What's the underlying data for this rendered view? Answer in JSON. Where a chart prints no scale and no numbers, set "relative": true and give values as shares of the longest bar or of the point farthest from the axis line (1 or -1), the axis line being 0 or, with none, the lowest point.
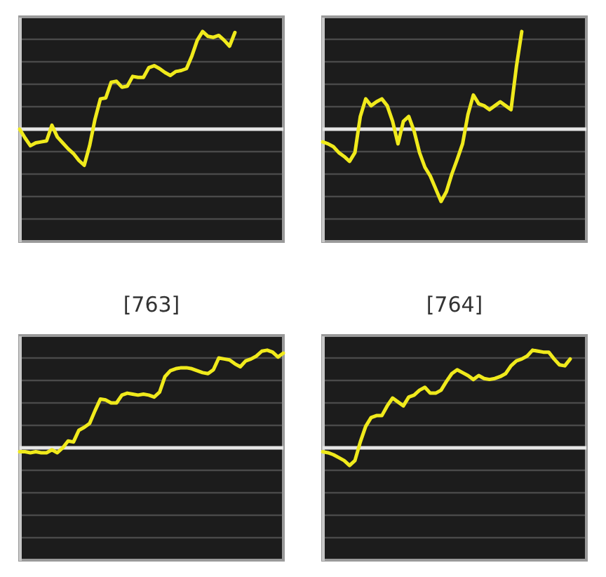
{
  "chart_data": [
    {
      "type": "line",
      "relative": true,
      "categories": [
        null,
        null,
        null,
        null,
        null,
        null,
        null,
        null,
        null,
        null,
        null,
        null,
        null,
        null,
        null,
        null,
        null,
        null,
        null,
        null,
        null,
        null,
        null,
        null,
        null,
        null,
        null,
        null,
        null,
        null,
        null,
        null,
        null,
        null,
        null,
        null,
        null,
        null,
        null,
        null,
        null,
        null,
        null,
        null,
        null,
        null,
        null,
        null,
        null,
        null
      ],
      "ref_lines": [
        {
          "axis": "y",
          "value": 0,
          "color": "#e6e6e6"
        }
      ],
      "series": [
        {
          "color": "#f0ea1c",
          "values": [
            0,
            -0.09,
            -0.17,
            -0.14,
            -0.13,
            -0.12,
            0.04,
            -0.08,
            -0.14,
            -0.2,
            -0.25,
            -0.32,
            -0.37,
            -0.17,
            0.1,
            0.31,
            0.32,
            0.48,
            0.49,
            0.43,
            0.44,
            0.54,
            0.53,
            0.53,
            0.63,
            0.65,
            0.62,
            0.58,
            0.55,
            0.59,
            0.6,
            0.62,
            0.75,
            0.91,
            1,
            0.95,
            0.94,
            0.96,
            0.91,
            0.85,
            0.99,
            null,
            null,
            null,
            null,
            null,
            null,
            null,
            null,
            null
          ]
        }
      ]
    },
    {
      "type": "line",
      "relative": true,
      "categories": [
        null,
        null,
        null,
        null,
        null,
        null,
        null,
        null,
        null,
        null,
        null,
        null,
        null,
        null,
        null,
        null,
        null,
        null,
        null,
        null,
        null,
        null,
        null,
        null,
        null,
        null,
        null,
        null,
        null,
        null,
        null,
        null,
        null,
        null,
        null,
        null,
        null,
        null,
        null,
        null,
        null,
        null,
        null,
        null,
        null,
        null,
        null,
        null,
        null,
        null
      ],
      "ref_lines": [
        {
          "axis": "y",
          "value": 0,
          "color": "#e6e6e6"
        }
      ],
      "series": [
        {
          "color": "#f0ea1c",
          "values": [
            -0.13,
            -0.15,
            -0.18,
            -0.24,
            -0.28,
            -0.33,
            -0.24,
            0.13,
            0.31,
            0.24,
            0.28,
            0.31,
            0.24,
            0.08,
            -0.15,
            0.08,
            0.13,
            -0.02,
            -0.24,
            -0.39,
            -0.48,
            -0.61,
            -0.74,
            -0.64,
            -0.46,
            -0.31,
            -0.15,
            0.15,
            0.35,
            0.26,
            0.24,
            0.2,
            0.24,
            0.28,
            0.24,
            0.2,
            0.64,
            1,
            null,
            null,
            null,
            null,
            null,
            null,
            null,
            null,
            null,
            null,
            null,
            null
          ]
        }
      ]
    },
    {
      "type": "line",
      "relative": true,
      "title": "[763]",
      "categories": [
        null,
        null,
        null,
        null,
        null,
        null,
        null,
        null,
        null,
        null,
        null,
        null,
        null,
        null,
        null,
        null,
        null,
        null,
        null,
        null,
        null,
        null,
        null,
        null,
        null,
        null,
        null,
        null,
        null,
        null,
        null,
        null,
        null,
        null,
        null,
        null,
        null,
        null,
        null,
        null,
        null,
        null,
        null,
        null,
        null,
        null,
        null,
        null,
        null,
        null
      ],
      "ref_lines": [
        {
          "axis": "y",
          "value": 0,
          "color": "#e6e6e6"
        }
      ],
      "series": [
        {
          "color": "#f0ea1c",
          "values": [
            -0.04,
            -0.04,
            -0.05,
            -0.04,
            -0.05,
            -0.05,
            -0.02,
            -0.05,
            0,
            0.07,
            0.06,
            0.18,
            0.21,
            0.25,
            0.38,
            0.5,
            0.49,
            0.46,
            0.46,
            0.54,
            0.56,
            0.55,
            0.54,
            0.55,
            0.54,
            0.52,
            0.57,
            0.73,
            0.79,
            0.81,
            0.82,
            0.82,
            0.81,
            0.79,
            0.77,
            0.76,
            0.8,
            0.92,
            0.91,
            0.9,
            0.86,
            0.83,
            0.89,
            0.91,
            0.94,
            0.99,
            1,
            0.98,
            0.93,
            0.97
          ]
        }
      ]
    },
    {
      "type": "line",
      "relative": true,
      "title": "[764]",
      "categories": [
        null,
        null,
        null,
        null,
        null,
        null,
        null,
        null,
        null,
        null,
        null,
        null,
        null,
        null,
        null,
        null,
        null,
        null,
        null,
        null,
        null,
        null,
        null,
        null,
        null,
        null,
        null,
        null,
        null,
        null,
        null,
        null,
        null,
        null,
        null,
        null,
        null,
        null,
        null,
        null,
        null,
        null,
        null,
        null,
        null,
        null,
        null,
        null,
        null,
        null
      ],
      "ref_lines": [
        {
          "axis": "y",
          "value": 0,
          "color": "#e6e6e6"
        }
      ],
      "series": [
        {
          "color": "#f0ea1c",
          "values": [
            -0.04,
            -0.05,
            -0.07,
            -0.1,
            -0.13,
            -0.18,
            -0.13,
            0.06,
            0.22,
            0.31,
            0.33,
            0.33,
            0.43,
            0.51,
            0.47,
            0.43,
            0.52,
            0.54,
            0.59,
            0.62,
            0.56,
            0.56,
            0.59,
            0.68,
            0.76,
            0.8,
            0.77,
            0.74,
            0.7,
            0.74,
            0.71,
            0.7,
            0.71,
            0.73,
            0.76,
            0.84,
            0.89,
            0.91,
            0.94,
            1,
            0.99,
            0.98,
            0.98,
            0.91,
            0.85,
            0.84,
            0.91,
            null,
            null,
            null
          ]
        }
      ]
    }
  ]
}
